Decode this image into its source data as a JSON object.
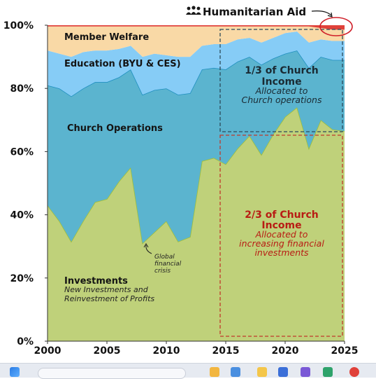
{
  "chart_data": {
    "type": "area",
    "stacked": true,
    "x": [
      2000,
      2001,
      2002,
      2003,
      2004,
      2005,
      2006,
      2007,
      2008,
      2009,
      2010,
      2011,
      2012,
      2013,
      2014,
      2015,
      2016,
      2017,
      2018,
      2019,
      2020,
      2021,
      2022,
      2023,
      2024,
      2025
    ],
    "series": [
      {
        "name": "Investments",
        "color": "#bfd17a",
        "values": [
          43,
          38,
          31.5,
          38,
          44,
          45,
          50.5,
          55,
          31,
          34.5,
          38,
          31.5,
          33,
          57,
          58,
          56,
          61,
          65,
          59,
          65.5,
          71,
          74,
          61,
          70,
          67,
          66.5
        ]
      },
      {
        "name": "Church Operations",
        "color": "#5bb4cf",
        "values": [
          38,
          42,
          46,
          42,
          38,
          37,
          33,
          31,
          47,
          45,
          42,
          46.5,
          45.5,
          29,
          28.5,
          30,
          27.5,
          25,
          28.5,
          24,
          20,
          18,
          25.5,
          20,
          22,
          22.5
        ]
      },
      {
        "name": "Education (BYU & CES)",
        "color": "#86ccf6",
        "values": [
          11,
          11,
          12.5,
          11.5,
          10,
          10,
          9,
          7.5,
          12,
          11.5,
          10.5,
          12,
          11.5,
          7.5,
          7.5,
          8,
          7,
          6,
          7,
          6.5,
          6.5,
          6,
          8,
          5.5,
          6,
          6
        ]
      },
      {
        "name": "Member Welfare",
        "color": "#f9d9a6",
        "values": [
          7.6,
          8.6,
          9.6,
          8.1,
          7.6,
          7.6,
          7.1,
          6.1,
          9.6,
          8.6,
          9.1,
          9.6,
          9.6,
          6.1,
          5.6,
          5.6,
          4.1,
          3.6,
          5.1,
          3.6,
          2.1,
          1.6,
          5.1,
          3.6,
          3.6,
          3.6
        ]
      },
      {
        "name": "Humanitarian Aid",
        "color": "#e0413a",
        "values": [
          0.4,
          0.4,
          0.4,
          0.4,
          0.4,
          0.4,
          0.4,
          0.4,
          0.4,
          0.4,
          0.4,
          0.4,
          0.4,
          0.4,
          0.4,
          0.4,
          0.4,
          0.4,
          0.4,
          0.4,
          0.4,
          0.4,
          0.4,
          0.9,
          1.4,
          1.9
        ]
      }
    ],
    "ylim": [
      0,
      100
    ],
    "xlim": [
      2000,
      2025
    ],
    "y_ticks": [
      "0%",
      "20%",
      "40%",
      "60%",
      "80%",
      "100%"
    ],
    "x_ticks": [
      "2000",
      "2005",
      "2010",
      "2015",
      "2020",
      "2025"
    ],
    "labels": {
      "member_welfare": "Member Welfare",
      "education": "Education (BYU & CES)",
      "church_operations": "Church Operations",
      "investments": "Investments",
      "investments_sub1": "New Investments and",
      "investments_sub2": "Reinvestment of Profits",
      "humanitarian_aid": "Humanitarian Aid"
    },
    "annotations": {
      "crisis_line1": "Global",
      "crisis_line2": "financial",
      "crisis_line3": "crisis",
      "box_top_title1": "1/3 of Church",
      "box_top_title2": "Income",
      "box_top_sub1": "Allocated to",
      "box_top_sub2": "Church operations",
      "box_bottom_title1": "2/3 of Church",
      "box_bottom_title2": "Income",
      "box_bottom_sub1": "Allocated to",
      "box_bottom_sub2": "increasing financial",
      "box_bottom_sub3": "investments"
    },
    "colors": {
      "box_top": "#2c4a5a",
      "box_bottom": "#c0392b",
      "highlight_circle": "#d0202a"
    }
  }
}
